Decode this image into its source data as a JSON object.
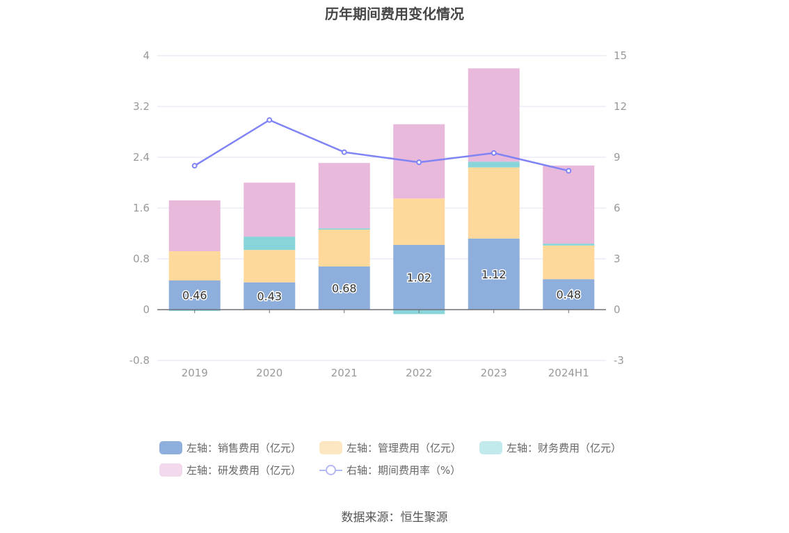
{
  "title": "历年期间费用变化情况",
  "source": "数据来源：恒生聚源",
  "legend": [
    {
      "label": "左轴：销售费用（亿元）",
      "color": "#8eaedc",
      "kind": "bar"
    },
    {
      "label": "左轴：管理费用（亿元）",
      "color": "#fde6c2",
      "kind": "bar"
    },
    {
      "label": "左轴：财务费用（亿元）",
      "color": "#c2eaed",
      "kind": "bar"
    },
    {
      "label": "左轴：研发费用（亿元）",
      "color": "#f2d9ec",
      "kind": "bar"
    },
    {
      "label": "右轴：期间费用率（%）",
      "color": "#b4b8f5",
      "kind": "line"
    }
  ],
  "chart_data": {
    "type": "bar",
    "stacked": true,
    "categories": [
      "2019",
      "2020",
      "2021",
      "2022",
      "2023",
      "2024H1"
    ],
    "y_left": {
      "min": -0.8,
      "max": 4,
      "ticks": [
        "-0.8",
        "0",
        "0.8",
        "1.6",
        "2.4",
        "3.2",
        "4"
      ]
    },
    "y_right": {
      "min": -3,
      "max": 15,
      "ticks": [
        "-3",
        "0",
        "3",
        "6",
        "9",
        "12",
        "15"
      ]
    },
    "series": [
      {
        "name": "左轴：销售费用（亿元）",
        "axis": "left",
        "color": "#8eaedc",
        "values": [
          0.46,
          0.43,
          0.68,
          1.02,
          1.12,
          0.48
        ],
        "labels": [
          "0.46",
          "0.43",
          "0.68",
          "1.02",
          "1.12",
          "0.48"
        ]
      },
      {
        "name": "左轴：管理费用（亿元）",
        "axis": "left",
        "color": "#fed99b",
        "values": [
          0.46,
          0.51,
          0.58,
          0.73,
          1.12,
          0.53
        ]
      },
      {
        "name": "左轴：财务费用（亿元）",
        "axis": "left",
        "color": "#88d5d9",
        "values": [
          -0.02,
          0.21,
          0.02,
          -0.07,
          0.09,
          0.03
        ]
      },
      {
        "name": "左轴：研发费用（亿元）",
        "axis": "left",
        "color": "#e8b9db",
        "values": [
          0.8,
          0.85,
          1.03,
          1.17,
          1.47,
          1.23
        ]
      },
      {
        "name": "右轴：期间费用率（%）",
        "axis": "right",
        "type": "line",
        "color": "#7f83f5",
        "values": [
          8.5,
          11.2,
          9.3,
          8.7,
          9.25,
          8.2
        ]
      }
    ],
    "grid": true
  }
}
